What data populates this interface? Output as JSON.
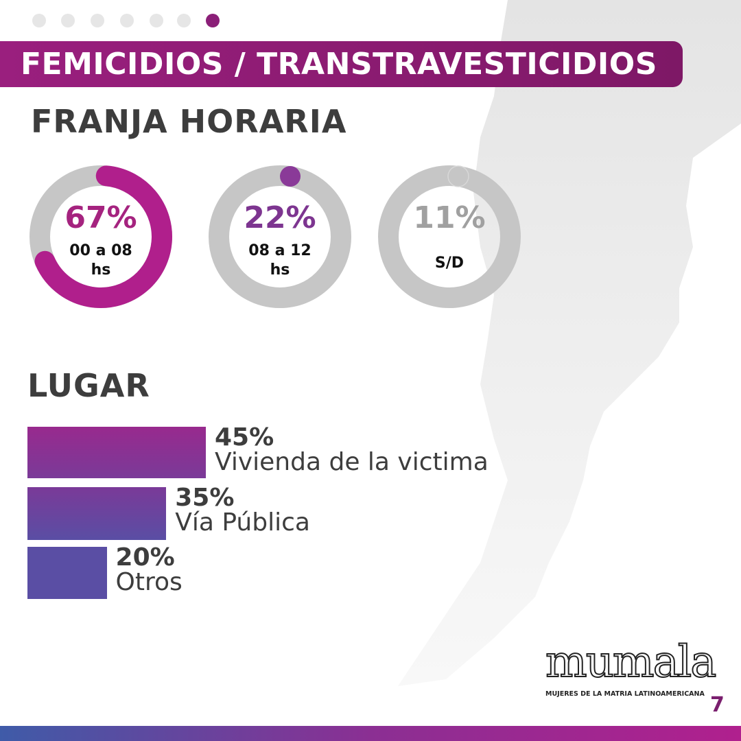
{
  "pagination": {
    "total": 7,
    "active": 7
  },
  "header": {
    "title": "FEMICIDIOS / TRANSTRAVESTICIDIOS"
  },
  "franja": {
    "title": "FRANJA HORARIA",
    "items": [
      {
        "pct": "67%",
        "label": "00 a 08 hs",
        "value": 67,
        "color": "#b01f8c",
        "text_color": "#a5237f"
      },
      {
        "pct": "22%",
        "label": "08 a 12 hs",
        "value": 22,
        "color": "#8a3a98",
        "text_color": "#7d3590"
      },
      {
        "pct": "11%",
        "label": "S/D",
        "value": 11,
        "color": "#c4c4c4",
        "text_color": "#a0a0a0"
      }
    ]
  },
  "lugar": {
    "title": "LUGAR",
    "items": [
      {
        "pct": "45%",
        "label": "Vivienda de la victima",
        "value": 45,
        "color": "#982a8e"
      },
      {
        "pct": "35%",
        "label": "Vía Pública",
        "value": 35,
        "color": "#7a3a98"
      },
      {
        "pct": "20%",
        "label": "Otros",
        "value": 20,
        "color": "#5a4ea4"
      }
    ]
  },
  "logo": {
    "name": "mumala",
    "tagline": "MUJERES DE LA MATRIA LATINOAMERICANA"
  },
  "page_number": "7"
}
